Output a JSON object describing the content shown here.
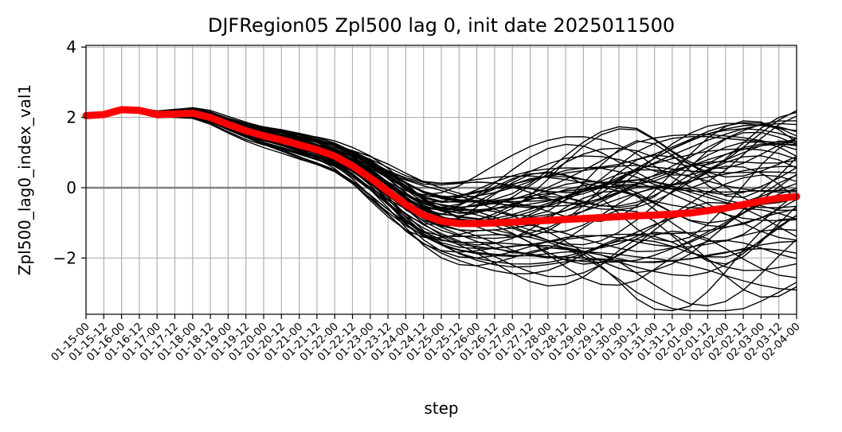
{
  "chart_data": {
    "type": "line",
    "title": "DJFRegion05 Zpl500 lag 0, init date 2025011500",
    "xlabel": "step",
    "ylabel": "Zpl500_lag0_index_val1",
    "ylim": [
      -3.6,
      4.05
    ],
    "yticks": [
      -2,
      0,
      2,
      4
    ],
    "ytick_labels": [
      "−2",
      "0",
      "2",
      "4"
    ],
    "grid": true,
    "zero_line_color": "#808080",
    "ensemble_color": "#000000",
    "mean_color": "#ff0000",
    "categories": [
      "01-15-00",
      "01-15-12",
      "01-16-00",
      "01-16-12",
      "01-17-00",
      "01-17-12",
      "01-18-00",
      "01-18-12",
      "01-19-00",
      "01-19-12",
      "01-20-00",
      "01-20-12",
      "01-21-00",
      "01-21-12",
      "01-22-00",
      "01-22-12",
      "01-23-00",
      "01-23-12",
      "01-24-00",
      "01-24-12",
      "01-25-00",
      "01-25-12",
      "01-26-00",
      "01-26-12",
      "01-27-00",
      "01-27-12",
      "01-28-00",
      "01-28-12",
      "01-29-00",
      "01-29-12",
      "01-30-00",
      "01-30-12",
      "01-31-00",
      "01-31-12",
      "02-01-00",
      "02-01-12",
      "02-02-00",
      "02-02-12",
      "02-03-00",
      "02-03-12",
      "02-04-00"
    ],
    "ensemble_mean": [
      2.05,
      2.08,
      2.22,
      2.2,
      2.08,
      2.1,
      2.12,
      2.0,
      1.8,
      1.62,
      1.48,
      1.36,
      1.22,
      1.08,
      0.9,
      0.62,
      0.28,
      -0.1,
      -0.48,
      -0.78,
      -0.95,
      -1.02,
      -1.02,
      -1.0,
      -0.98,
      -0.95,
      -0.93,
      -0.9,
      -0.88,
      -0.85,
      -0.82,
      -0.8,
      -0.78,
      -0.75,
      -0.72,
      -0.65,
      -0.58,
      -0.48,
      -0.38,
      -0.3,
      -0.25
    ],
    "ensemble_members": {
      "count": 60,
      "common_start": [
        2.05,
        2.08,
        2.2
      ],
      "divergence_mode": "mean plus per-member offsets",
      "note": "black lines spread around the mean; members fan out after 01-22 reaching about 4.0 above and -3.5 below"
    }
  }
}
